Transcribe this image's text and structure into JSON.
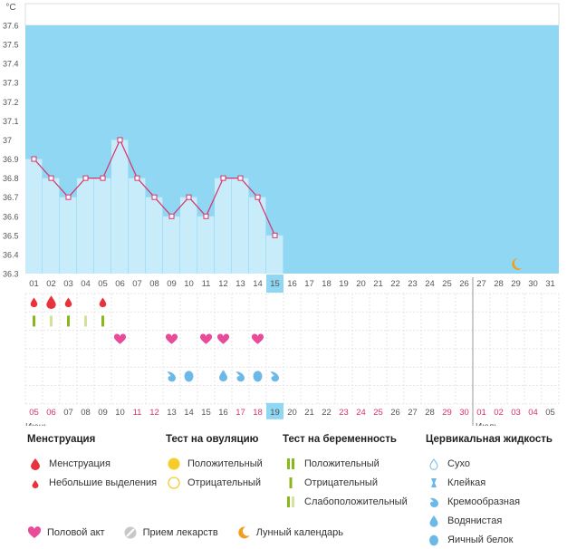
{
  "chart_data": {
    "type": "line",
    "unit_label": "°C",
    "ylim": [
      36.3,
      37.6
    ],
    "y_ticks": [
      "37.6",
      "37.5",
      "37.4",
      "37.3",
      "37.2",
      "37.1",
      "37",
      "36.9",
      "36.8",
      "36.7",
      "36.6",
      "36.5",
      "36.4",
      "36.3"
    ],
    "days": [
      "01",
      "02",
      "03",
      "04",
      "05",
      "06",
      "07",
      "08",
      "09",
      "10",
      "11",
      "12",
      "13",
      "14",
      "15",
      "16",
      "17",
      "18",
      "19",
      "20",
      "21",
      "22",
      "23",
      "24",
      "25",
      "26",
      "27",
      "28",
      "29",
      "30",
      "31"
    ],
    "temperatures": [
      36.9,
      36.8,
      36.7,
      36.8,
      36.8,
      37.0,
      36.8,
      36.7,
      36.6,
      36.7,
      36.6,
      36.8,
      36.8,
      36.7,
      36.5
    ],
    "current_day_index": 14,
    "moon_day_index": 28,
    "rows": {
      "menstruation": [
        "small",
        "full",
        "small",
        "",
        "small"
      ],
      "ovulation_test": [
        "strong",
        "weak",
        "strong",
        "weak",
        "strong"
      ],
      "intercourse_days": [
        5,
        8,
        10,
        11,
        13
      ],
      "cervical_fluid": [
        {
          "day": 8,
          "kind": "creamy"
        },
        {
          "day": 9,
          "kind": "eggwhite"
        },
        {
          "day": 11,
          "kind": "watery"
        },
        {
          "day": 12,
          "kind": "creamy"
        },
        {
          "day": 13,
          "kind": "eggwhite"
        },
        {
          "day": 14,
          "kind": "creamy"
        }
      ]
    },
    "cycle_days": [
      "05",
      "06",
      "07",
      "08",
      "09",
      "10",
      "11",
      "12",
      "13",
      "14",
      "15",
      "16",
      "17",
      "18",
      "19",
      "20",
      "21",
      "22",
      "23",
      "24",
      "25",
      "26",
      "27",
      "28",
      "29",
      "30",
      "01",
      "02",
      "03",
      "04",
      "05"
    ],
    "cycle_red": [
      0,
      1,
      6,
      7,
      12,
      13,
      18,
      19,
      20,
      24,
      25,
      26,
      27,
      28,
      29
    ],
    "cycle_current_index": 14,
    "month_labels": [
      "Июнь",
      "Июль"
    ],
    "month_split_index": 26
  },
  "legend": {
    "menstruation": {
      "title": "Менструация",
      "items": [
        "Менструация",
        "Небольшие выделения"
      ]
    },
    "ovulation": {
      "title": "Тест на овуляцию",
      "items": [
        "Положительный",
        "Отрицательный"
      ]
    },
    "pregnancy": {
      "title": "Тест на беременность",
      "items": [
        "Положительный",
        "Отрицательный",
        "Слабоположительный"
      ]
    },
    "cervical": {
      "title": "Цервикальная жидкость",
      "items": [
        "Сухо",
        "Клейкая",
        "Кремообразная",
        "Водянистая",
        "Яичный белок"
      ]
    },
    "bottom": [
      "Половой акт",
      "Прием лекарств",
      "Лунный календарь"
    ]
  },
  "colors": {
    "sky": "#8fd7f2",
    "bar": "#c9ecfb",
    "line": "#d6336c",
    "drop": "#e8333d",
    "green": "#8ab61a",
    "heart": "#e94b9a",
    "fluid": "#6cb8e6",
    "moon": "#f0a020"
  }
}
